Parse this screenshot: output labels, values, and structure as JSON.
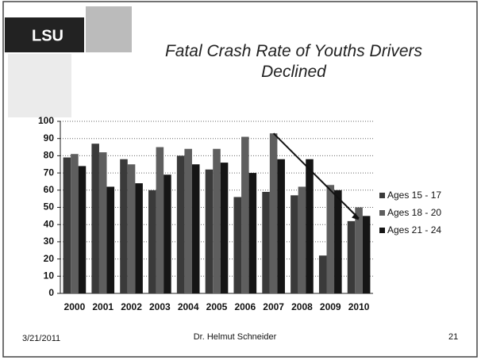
{
  "header": {
    "logo": "LSU",
    "date": "3/21/2011",
    "author": "Dr. Helmut Schneider",
    "page": "21"
  },
  "chart_data": {
    "type": "bar",
    "title": "Fatal Crash Rate of Youths Drivers Declined",
    "categories": [
      "2000",
      "2001",
      "2002",
      "2003",
      "2004",
      "2005",
      "2006",
      "2007",
      "2008",
      "2009",
      "2010"
    ],
    "series": [
      {
        "name": "Ages 15 - 17",
        "color": "#3a3a3a",
        "values": [
          79,
          87,
          78,
          60,
          80,
          72,
          56,
          59,
          57,
          22,
          42
        ]
      },
      {
        "name": "Ages 18 - 20",
        "color": "#5e5e5e",
        "values": [
          81,
          82,
          75,
          85,
          84,
          84,
          91,
          93,
          62,
          63,
          50
        ]
      },
      {
        "name": "Ages 21 - 24",
        "color": "#151515",
        "values": [
          74,
          62,
          64,
          69,
          75,
          76,
          70,
          78,
          78,
          60,
          45
        ]
      }
    ],
    "ylim": [
      0,
      100
    ],
    "yticks": [
      0,
      10,
      20,
      30,
      40,
      50,
      60,
      70,
      80,
      90,
      100
    ],
    "grid": true,
    "legend": "right"
  }
}
